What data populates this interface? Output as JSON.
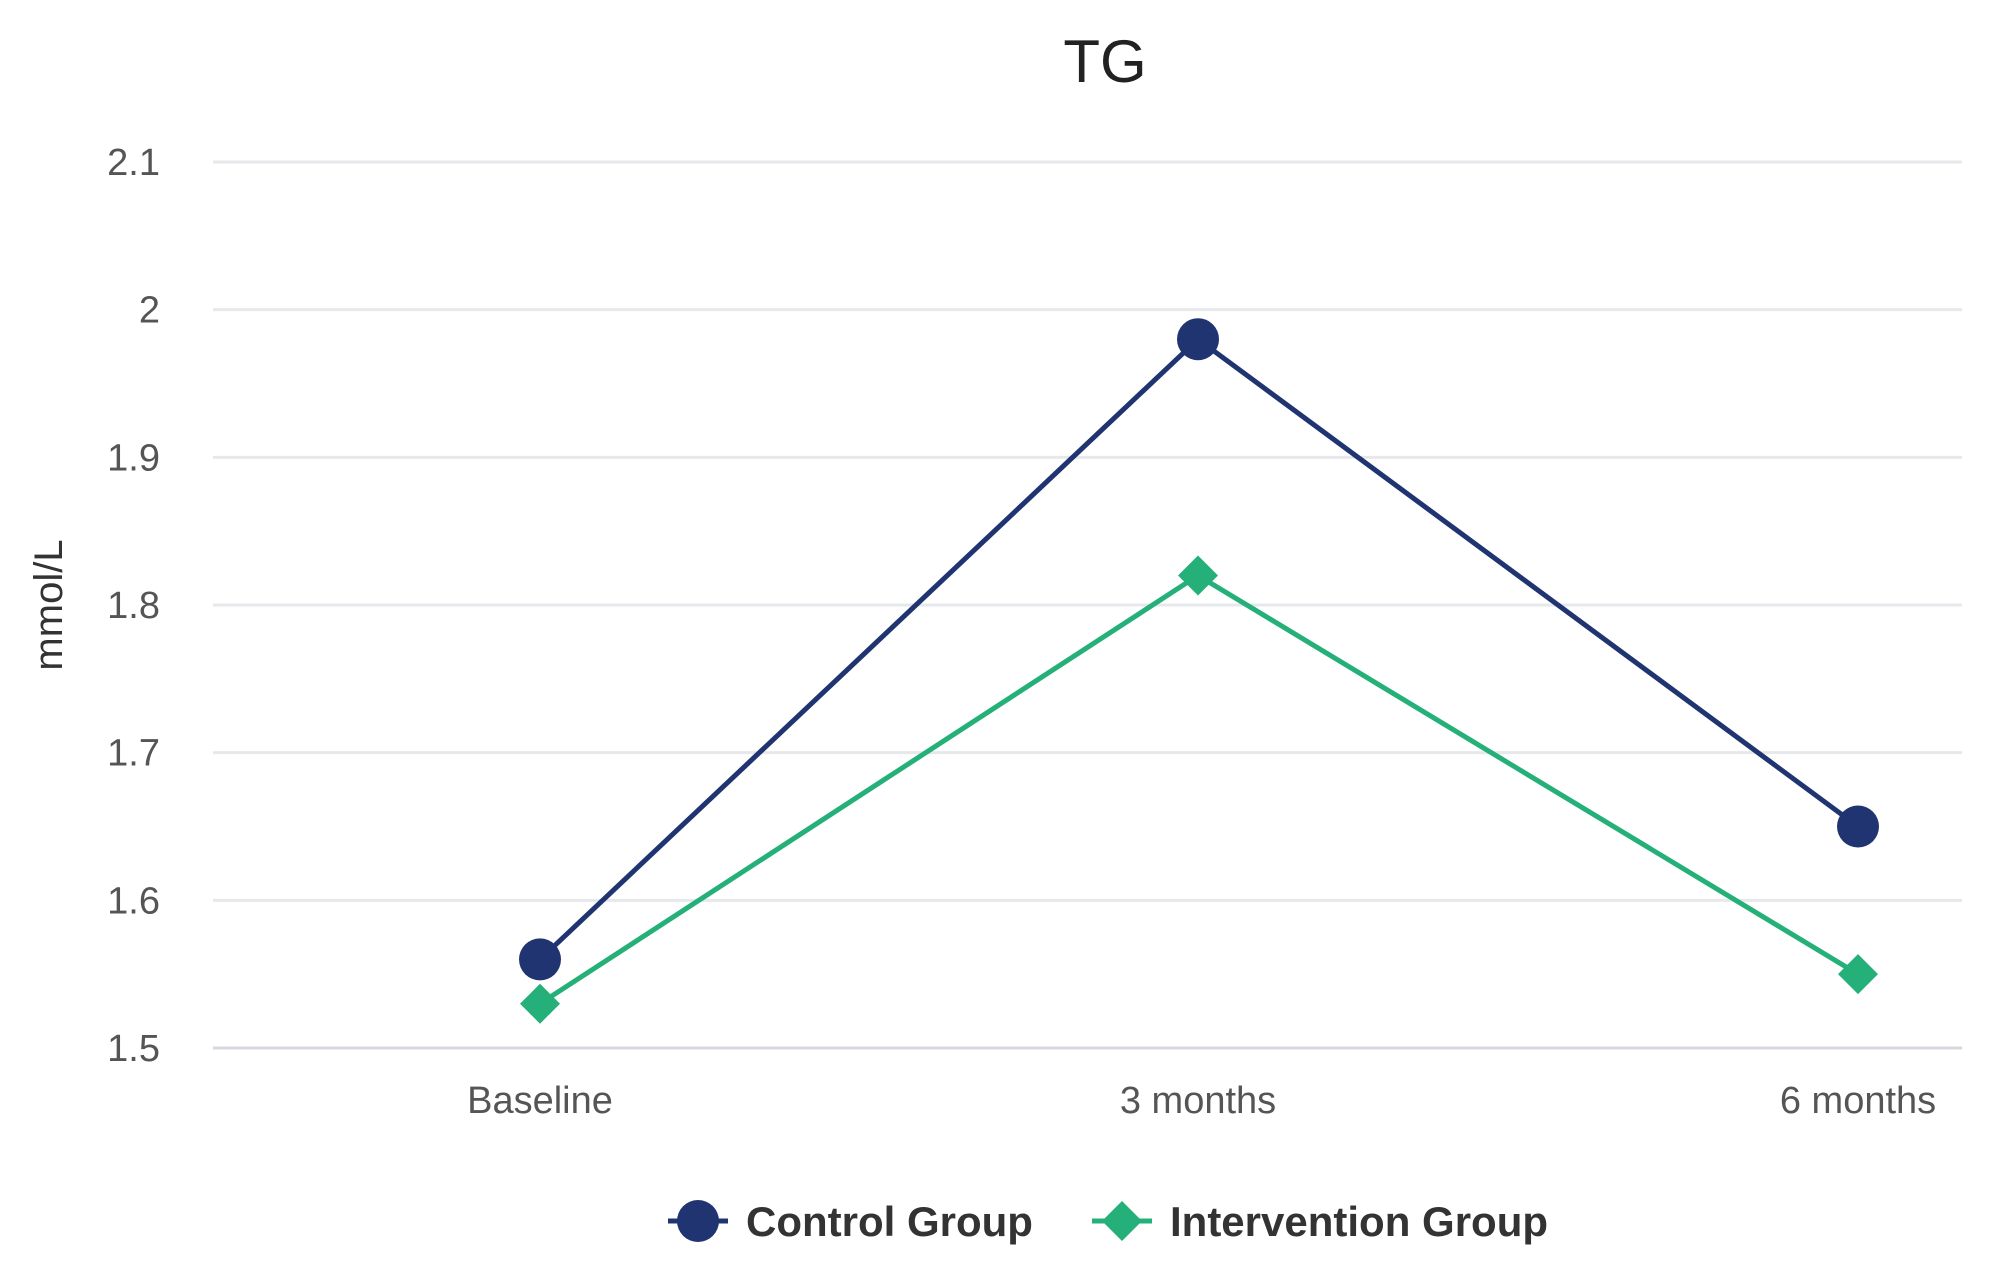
{
  "chart_data": {
    "type": "line",
    "title": "TG",
    "xlabel": "",
    "ylabel": "mmol/L",
    "categories": [
      "Baseline",
      "3 months",
      "6 months"
    ],
    "ylim": [
      1.5,
      2.1
    ],
    "yticks": [
      1.5,
      1.6,
      1.7,
      1.8,
      1.9,
      2.0,
      2.1
    ],
    "ytick_labels": [
      "1.5",
      "1.6",
      "1.7",
      "1.8",
      "1.9",
      "2",
      "2.1"
    ],
    "grid": true,
    "legend_position": "bottom-center",
    "series": [
      {
        "name": "Control Group",
        "values": [
          1.56,
          1.98,
          1.65
        ],
        "color": "#1f3470",
        "marker": "circle"
      },
      {
        "name": "Intervention Group",
        "values": [
          1.53,
          1.82,
          1.55
        ],
        "color": "#25b07a",
        "marker": "diamond"
      }
    ]
  },
  "colors": {
    "grid": "#e6e8ec",
    "axis": "#d5d8de"
  }
}
